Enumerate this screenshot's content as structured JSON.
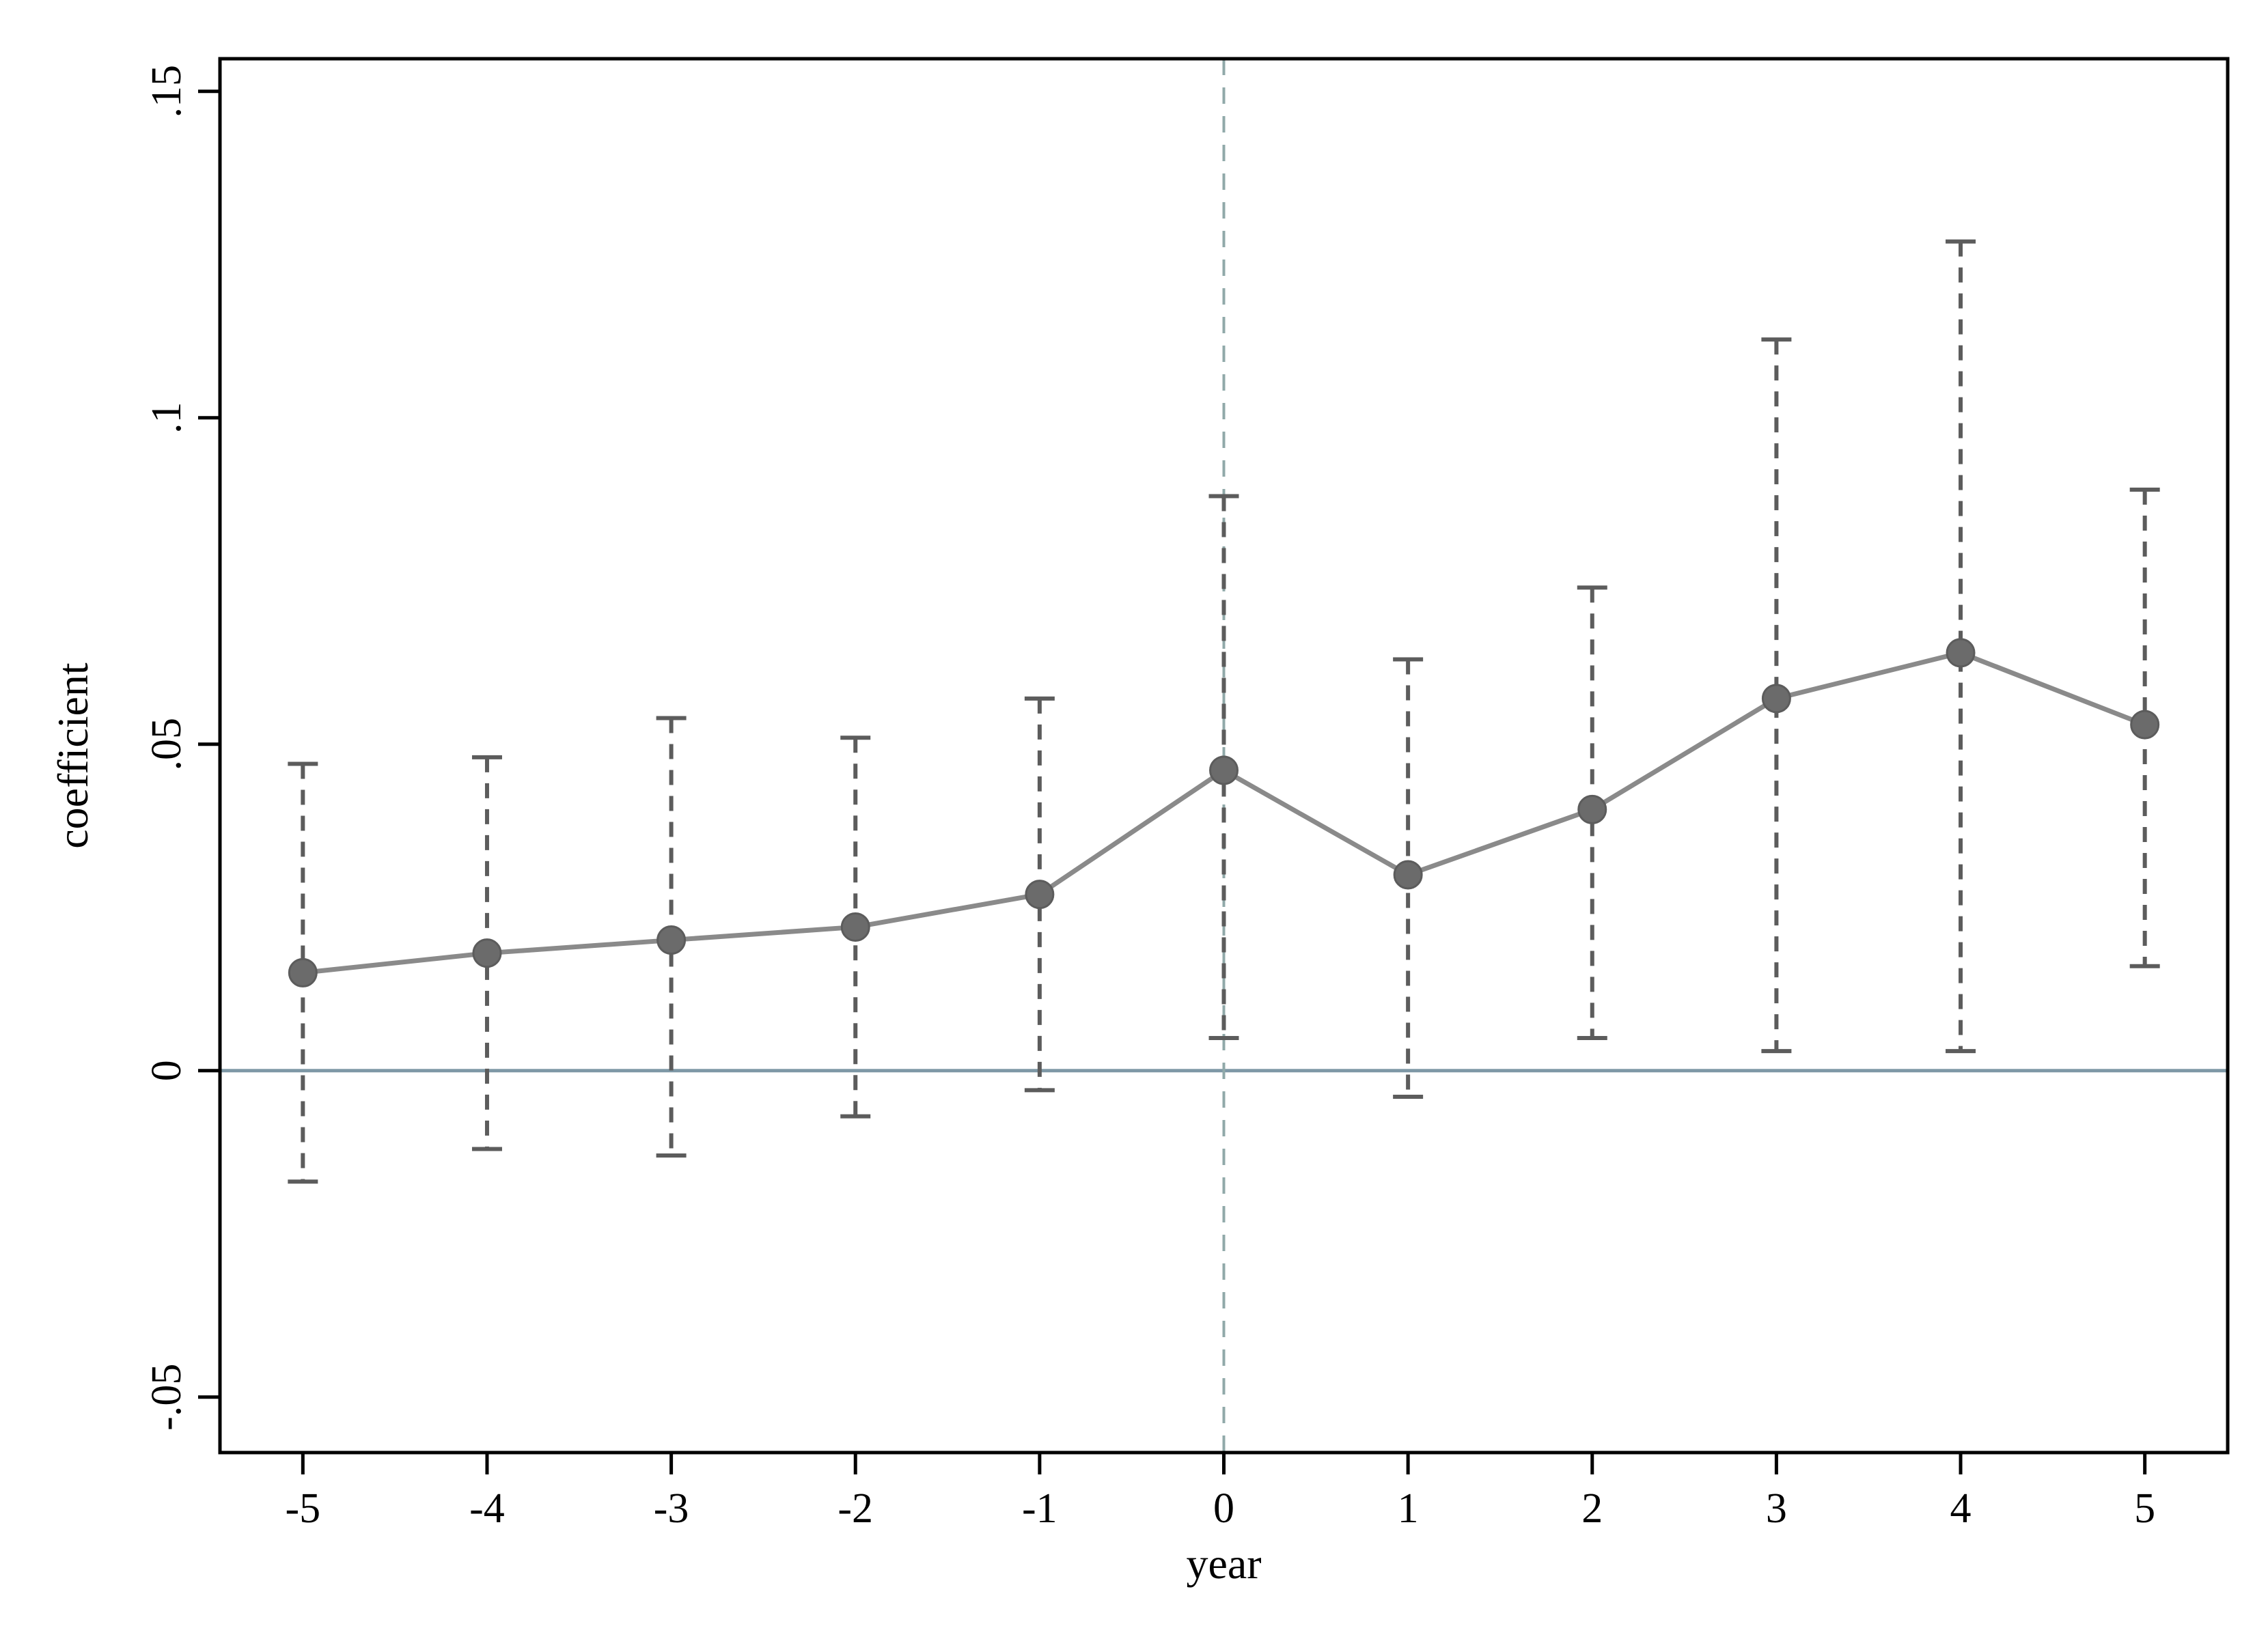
{
  "chart_data": {
    "type": "line",
    "subtype": "event-study-coefficient-plot",
    "title": "",
    "xlabel": "year",
    "ylabel": "coefficient",
    "grid": false,
    "legend_position": "none",
    "xlim": [
      -5.45,
      5.45
    ],
    "ylim": [
      -0.0585,
      0.155
    ],
    "xticks": [
      -5,
      -4,
      -3,
      -2,
      -1,
      0,
      1,
      2,
      3,
      4,
      5
    ],
    "xtick_labels": [
      "-5",
      "-4",
      "-3",
      "-2",
      "-1",
      "0",
      "1",
      "2",
      "3",
      "4",
      "5"
    ],
    "yticks": [
      -0.05,
      0,
      0.05,
      0.1,
      0.15
    ],
    "ytick_labels": [
      "-.05",
      "0",
      ".05",
      ".1",
      ".15"
    ],
    "reference_lines": {
      "hline_y": 0,
      "vline_x": 0
    },
    "series": [
      {
        "name": "coefficient",
        "x": [
          -5,
          -4,
          -3,
          -2,
          -1,
          0,
          1,
          2,
          3,
          4,
          5
        ],
        "values": [
          0.015,
          0.018,
          0.02,
          0.022,
          0.027,
          0.046,
          0.03,
          0.04,
          0.057,
          0.064,
          0.053
        ],
        "ci_low": [
          -0.017,
          -0.012,
          -0.013,
          -0.007,
          -0.003,
          0.005,
          -0.004,
          0.005,
          0.003,
          0.003,
          0.016
        ],
        "ci_high": [
          0.047,
          0.048,
          0.054,
          0.051,
          0.057,
          0.088,
          0.063,
          0.074,
          0.112,
          0.127,
          0.089
        ]
      }
    ],
    "colors": {
      "line": "#8a8a8a",
      "marker_fill": "#6b6b6b",
      "marker_edge": "#5c5c5c",
      "error_bar": "#5c5c5c",
      "zero_line": "#7e98a6",
      "event_line": "#90a9a9",
      "frame": "#000000",
      "background": "#ffffff"
    }
  }
}
